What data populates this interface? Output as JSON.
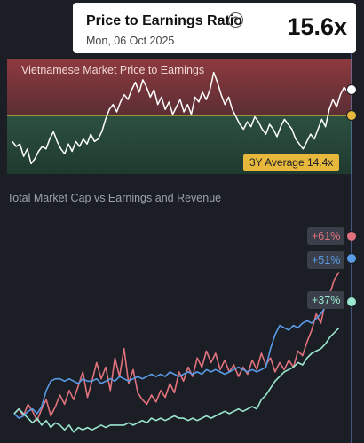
{
  "tooltip": {
    "title": "Price to Earnings Ratio",
    "help_icon": "question-circle-icon",
    "date": "Mon, 06 Oct 2025",
    "value": "15.6x"
  },
  "pe_chart": {
    "title": "Vietnamese Market Price to Earnings",
    "average_label": "3Y Average 14.4x"
  },
  "market_chart": {
    "title": "Total Market Cap vs Earnings and Revenue"
  },
  "colors": {
    "background": "#1b1e25",
    "above_zone": "#8e3a3f",
    "below_zone": "#27473a",
    "average_line": "#e7b83c",
    "revenue": "#e1727d",
    "market_cap": "#5a9be6",
    "earnings": "#9be6cf",
    "cursor_line": "#6b93d6"
  },
  "chart_data": [
    {
      "type": "line",
      "title": "Vietnamese Market Price to Earnings",
      "average": 14.4,
      "ylim": [
        12.4,
        16.5
      ],
      "series": [
        {
          "values": [
            13.5,
            13.3,
            13.4,
            12.9,
            13.2,
            12.6,
            12.8,
            13.1,
            13.3,
            13.2,
            13.6,
            13.9,
            13.5,
            13.2,
            13.0,
            13.4,
            13.1,
            13.5,
            13.3,
            13.6,
            13.4,
            13.8,
            13.5,
            13.6,
            13.9,
            14.4,
            14.8,
            15.0,
            14.7,
            15.1,
            15.4,
            15.2,
            15.6,
            15.9,
            15.5,
            16.0,
            15.7,
            15.3,
            15.6,
            15.0,
            15.3,
            14.8,
            15.1,
            14.6,
            14.9,
            15.2,
            14.7,
            15.0,
            14.6,
            15.3,
            15.1,
            15.5,
            15.2,
            15.6,
            16.3,
            15.9,
            15.4,
            15.0,
            15.3,
            14.8,
            14.5,
            14.2,
            14.0,
            14.3,
            14.1,
            14.5,
            14.3,
            14.0,
            13.8,
            14.2,
            14.0,
            13.7,
            14.1,
            14.4,
            14.2,
            14.0,
            13.6,
            13.4,
            13.2,
            13.5,
            13.8,
            13.6,
            14.0,
            14.4,
            14.1,
            14.8,
            15.2,
            14.9,
            15.4,
            15.7,
            15.5,
            15.6
          ]
        }
      ]
    },
    {
      "type": "line",
      "title": "Total Market Cap vs Earnings and Revenue",
      "ylim": [
        -10,
        75
      ],
      "series": [
        {
          "name": "Revenue",
          "end_label": "+61%",
          "values": [
            0,
            2,
            -1,
            4,
            1,
            -3,
            2,
            6,
            -1,
            3,
            8,
            4,
            10,
            6,
            12,
            18,
            7,
            14,
            22,
            15,
            20,
            10,
            24,
            16,
            28,
            13,
            19,
            9,
            6,
            4,
            8,
            5,
            10,
            7,
            13,
            9,
            18,
            14,
            20,
            16,
            24,
            20,
            27,
            22,
            26,
            19,
            23,
            18,
            21,
            16,
            20,
            17,
            23,
            19,
            26,
            21,
            24,
            18,
            22,
            19,
            23,
            20,
            27,
            25,
            31,
            36,
            43,
            39,
            48,
            52,
            58,
            61
          ]
        },
        {
          "name": "Market Cap",
          "end_label": "+51%",
          "values": [
            0,
            -2,
            -1,
            1,
            2,
            0,
            3,
            10,
            14,
            15,
            15,
            14,
            15,
            14,
            13,
            15,
            14,
            14,
            15,
            13,
            14,
            15,
            14,
            16,
            15,
            14,
            15,
            16,
            15,
            16,
            17,
            16,
            17,
            16,
            18,
            17,
            16,
            17,
            18,
            17,
            18,
            17,
            19,
            18,
            19,
            18,
            17,
            18,
            19,
            20,
            19,
            18,
            19,
            18,
            19,
            20,
            28,
            34,
            38,
            37,
            36,
            38,
            37,
            39,
            40,
            39,
            41,
            43,
            46,
            48,
            50,
            51
          ]
        },
        {
          "name": "Earnings",
          "end_label": "+37%",
          "values": [
            0,
            2,
            0,
            -2,
            -4,
            -2,
            -5,
            -3,
            -6,
            -4,
            -5,
            -7,
            -5,
            -8,
            -6,
            -7,
            -6,
            -7,
            -6,
            -5,
            -6,
            -5,
            -5,
            -5,
            -5,
            -4,
            -5,
            -4,
            -3,
            -4,
            -2,
            -3,
            -2,
            -3,
            -2,
            -1,
            -2,
            -2,
            -3,
            -2,
            -3,
            -2,
            -1,
            -2,
            -1,
            0,
            1,
            0,
            1,
            2,
            1,
            2,
            3,
            2,
            6,
            8,
            11,
            14,
            16,
            18,
            19,
            20,
            22,
            21,
            24,
            26,
            27,
            28,
            30,
            33,
            35,
            37
          ]
        }
      ]
    }
  ]
}
